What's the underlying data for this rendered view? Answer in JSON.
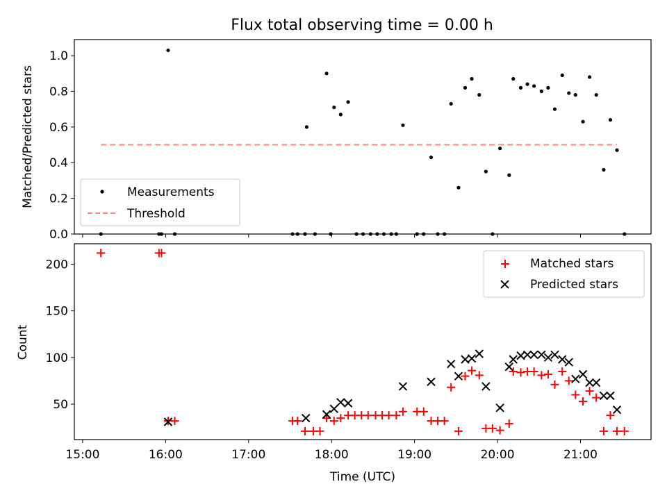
{
  "title": "Flux total observing time = 0.00 h",
  "chart_data": [
    {
      "type": "scatter",
      "panel": "top",
      "ylabel": "Matched/Predicted stars",
      "xlim": [
        14.9,
        21.85
      ],
      "ylim": [
        0,
        1.09
      ],
      "y_ticks": [
        0.0,
        0.2,
        0.4,
        0.6,
        0.8,
        1.0
      ],
      "y_tick_labels": [
        "0.0",
        "0.2",
        "0.4",
        "0.6",
        "0.8",
        "1.0"
      ],
      "legend_position": "lower-left",
      "series": [
        {
          "name": "Measurements",
          "color": "#000000",
          "marker": "dot",
          "x": [
            15.22,
            15.92,
            15.95,
            16.03,
            16.11,
            17.53,
            17.59,
            17.68,
            17.94,
            17.8,
            17.99,
            18.03,
            18.11,
            18.2,
            18.3,
            18.38,
            18.47,
            18.55,
            18.63,
            18.72,
            18.78,
            18.86,
            19.03,
            19.11,
            19.2,
            19.28,
            19.36,
            19.44,
            19.53,
            19.61,
            19.69,
            19.78,
            19.86,
            19.94,
            20.03,
            20.14,
            20.19,
            20.28,
            20.36,
            20.44,
            20.53,
            20.61,
            20.69,
            20.78,
            20.86,
            20.94,
            21.03,
            21.11,
            21.19,
            21.28,
            21.36,
            21.44,
            21.53
          ],
          "y": [
            0.0,
            0.0,
            0.0,
            1.03,
            0.0,
            0.0,
            0.0,
            0.0,
            0.9,
            0.0,
            0.0,
            0.71,
            0.67,
            0.74,
            0.0,
            0.0,
            0.0,
            0.0,
            0.0,
            0.0,
            0.0,
            0.61,
            0.0,
            0.0,
            0.43,
            0.0,
            0.0,
            0.73,
            0.26,
            0.82,
            0.87,
            0.78,
            0.35,
            0.0,
            0.48,
            0.33,
            0.87,
            0.82,
            0.84,
            0.83,
            0.8,
            0.82,
            0.7,
            0.89,
            0.79,
            0.78,
            0.63,
            0.88,
            0.78,
            0.36,
            0.64,
            0.47,
            0.0
          ]
        },
        {
          "name": "Threshold",
          "color": "#ff8080",
          "style": "dashed",
          "x": [
            15.22,
            21.44
          ],
          "y": [
            0.5,
            0.5
          ]
        }
      ],
      "extra_points": {
        "x": [
          17.7
        ],
        "y": [
          0.6
        ]
      }
    },
    {
      "type": "scatter",
      "panel": "bottom",
      "xlabel": "Time (UTC)",
      "ylabel": "Count",
      "xlim": [
        14.9,
        21.85
      ],
      "ylim": [
        12,
        222
      ],
      "x_ticks": [
        15,
        16,
        17,
        18,
        19,
        20,
        21
      ],
      "x_tick_labels": [
        "15:00",
        "16:00",
        "17:00",
        "18:00",
        "19:00",
        "20:00",
        "21:00"
      ],
      "y_ticks": [
        50,
        100,
        150,
        200
      ],
      "y_tick_labels": [
        "50",
        "100",
        "150",
        "200"
      ],
      "legend_position": "upper-right",
      "series": [
        {
          "name": "Matched stars",
          "color": "#ff0000",
          "marker": "plus",
          "x": [
            15.22,
            15.92,
            15.95,
            16.03,
            16.11,
            17.53,
            17.59,
            17.68,
            17.78,
            17.86,
            17.94,
            18.03,
            18.11,
            18.2,
            18.28,
            18.36,
            18.44,
            18.53,
            18.61,
            18.69,
            18.78,
            18.86,
            19.03,
            19.11,
            19.2,
            19.28,
            19.36,
            19.44,
            19.53,
            19.61,
            19.69,
            19.78,
            19.86,
            19.94,
            20.03,
            20.14,
            20.19,
            20.28,
            20.36,
            20.44,
            20.53,
            20.61,
            20.69,
            20.78,
            20.86,
            20.94,
            21.03,
            21.11,
            21.19,
            21.28,
            21.36,
            21.44,
            21.53
          ],
          "y": [
            212,
            212,
            212,
            32,
            32,
            32,
            32,
            21,
            21,
            21,
            35,
            32,
            35,
            38,
            38,
            38,
            38,
            38,
            38,
            38,
            38,
            42,
            42,
            42,
            32,
            32,
            32,
            68,
            21,
            80,
            86,
            81,
            24,
            24,
            22,
            29,
            85,
            84,
            85,
            85,
            81,
            82,
            71,
            85,
            75,
            60,
            53,
            64,
            57,
            21,
            38,
            21,
            21
          ]
        },
        {
          "name": "Predicted stars",
          "color": "#000000",
          "marker": "x",
          "x": [
            16.03,
            17.69,
            17.94,
            18.03,
            18.11,
            18.2,
            18.86,
            19.2,
            19.44,
            19.53,
            19.61,
            19.69,
            19.78,
            19.86,
            20.03,
            20.14,
            20.19,
            20.28,
            20.36,
            20.44,
            20.53,
            20.61,
            20.69,
            20.78,
            20.86,
            20.94,
            21.03,
            21.11,
            21.19,
            21.28,
            21.36,
            21.44
          ],
          "y": [
            31,
            35,
            39,
            45,
            52,
            51,
            69,
            74,
            93,
            80,
            98,
            99,
            104,
            69,
            46,
            90,
            98,
            102,
            103,
            103,
            103,
            100,
            103,
            98,
            95,
            77,
            82,
            73,
            73,
            59,
            59,
            44
          ]
        }
      ]
    }
  ],
  "colors": {
    "axis": "#000000",
    "matched": "#ff0000",
    "predicted": "#000000",
    "threshold": "#ff8080"
  }
}
